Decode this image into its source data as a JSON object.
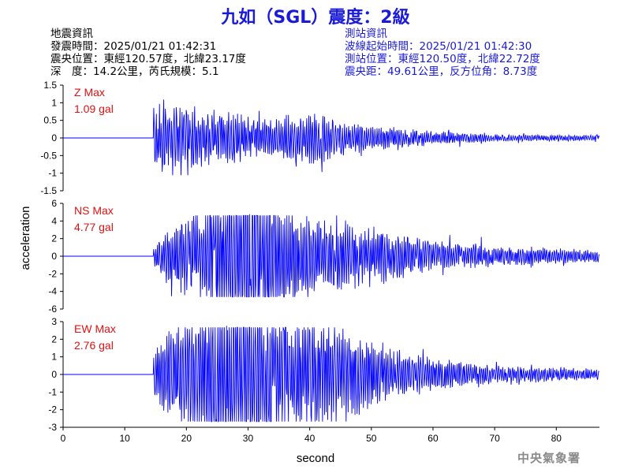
{
  "title": "九如（SGL）震度：2級",
  "quake_info": {
    "heading": "地震資訊",
    "time": "發震時間：2025/01/21 01:42:31",
    "position": "震央位置：東經120.57度，北緯23.17度",
    "depth_magnitude": "深　度：14.2公里，芮氏規模：5.1"
  },
  "station_info": {
    "heading": "測站資訊",
    "wave_start": "波線起始時間：2025/01/21 01:42:30",
    "position": "測站位置：東經120.50度，北緯22.72度",
    "distance_azimuth": "震央距：49.61公里，反方位角：8.73度"
  },
  "watermark": "中央氣象署",
  "colors": {
    "trace": "#0000ff",
    "title": "#1a1ad8",
    "max_label": "#e01010"
  },
  "chart_data": {
    "type": "line",
    "xlabel": "second",
    "ylabel": "acceleration",
    "xlim": [
      0,
      87
    ],
    "x_ticks": [
      0,
      10,
      20,
      30,
      40,
      50,
      60,
      70,
      80
    ],
    "grid": false,
    "onset_seconds": 14.7,
    "panels": [
      {
        "name": "Z",
        "max_label": "Z Max",
        "max_value": "1.09 gal",
        "max_abs": 1.09,
        "ylim": [
          -1.5,
          1.5
        ],
        "y_ticks": [
          -1.5,
          -1,
          -0.5,
          0,
          0.5,
          1,
          1.5
        ],
        "y_tick_labels": [
          "-1.5",
          "-1",
          "-0.5",
          "0",
          "0.5",
          "1",
          "1.5"
        ],
        "peak_time_seconds": 16.3,
        "envelope": [
          [
            14.7,
            0.9
          ],
          [
            18,
            0.95
          ],
          [
            22,
            0.8
          ],
          [
            26,
            0.75
          ],
          [
            30,
            0.6
          ],
          [
            35,
            0.55
          ],
          [
            41,
            0.8
          ],
          [
            45,
            0.45
          ],
          [
            52,
            0.32
          ],
          [
            60,
            0.2
          ],
          [
            70,
            0.1
          ],
          [
            87,
            0.08
          ]
        ]
      },
      {
        "name": "NS",
        "max_label": "NS Max",
        "max_value": "4.77 gal",
        "max_abs": 4.77,
        "ylim": [
          -6,
          6
        ],
        "y_ticks": [
          -6,
          -4,
          -2,
          0,
          2,
          4,
          6
        ],
        "y_tick_labels": [
          "-6",
          "-4",
          "-2",
          "0",
          "2",
          "4",
          "6"
        ],
        "peak_time_seconds": 30.3,
        "envelope": [
          [
            14.7,
            0.3
          ],
          [
            17,
            0.7
          ],
          [
            22,
            1.2
          ],
          [
            25,
            1.8
          ],
          [
            28,
            2.8
          ],
          [
            31,
            3.2
          ],
          [
            35,
            1.7
          ],
          [
            40,
            1.0
          ],
          [
            45,
            0.9
          ],
          [
            52,
            0.7
          ],
          [
            60,
            0.4
          ],
          [
            70,
            0.25
          ],
          [
            87,
            0.15
          ]
        ]
      },
      {
        "name": "EW",
        "max_label": "EW Max",
        "max_value": "2.76 gal",
        "max_abs": 2.76,
        "ylim": [
          -3,
          3
        ],
        "y_ticks": [
          -3,
          -2,
          -1,
          0,
          1,
          2,
          3
        ],
        "y_tick_labels": [
          "-3",
          "-2",
          "-1",
          "0",
          "1",
          "2",
          "3"
        ],
        "peak_time_seconds": 26.5,
        "envelope": [
          [
            14.7,
            0.5
          ],
          [
            17,
            1.0
          ],
          [
            20,
            1.3
          ],
          [
            24,
            1.8
          ],
          [
            27,
            2.3
          ],
          [
            31,
            2.0
          ],
          [
            36,
            1.5
          ],
          [
            42,
            1.2
          ],
          [
            47,
            1.0
          ],
          [
            52,
            0.6
          ],
          [
            60,
            0.35
          ],
          [
            70,
            0.2
          ],
          [
            87,
            0.12
          ]
        ]
      }
    ]
  }
}
